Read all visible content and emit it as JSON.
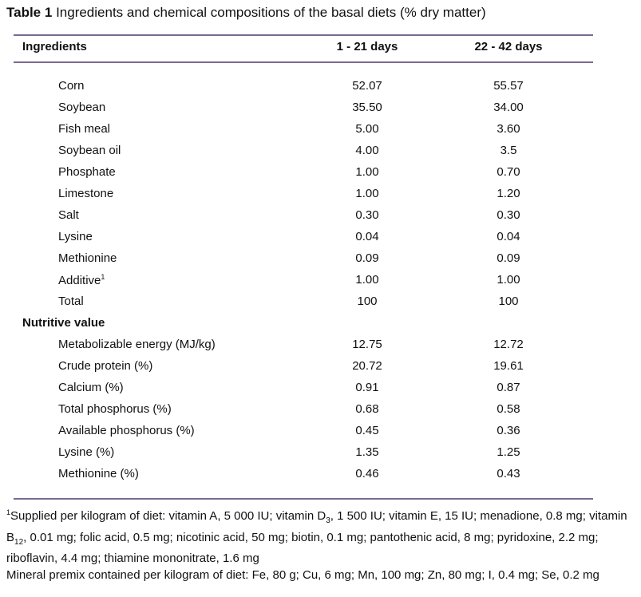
{
  "title": {
    "label": "Table 1",
    "text": "Ingredients and chemical compositions of the basal diets (% dry matter)"
  },
  "header": {
    "col0": "Ingredients",
    "col1": "1 - 21 days",
    "col2": "22 - 42 days"
  },
  "rows": [
    {
      "label": "Corn",
      "v1": "52.07",
      "v2": "55.57"
    },
    {
      "label": "Soybean",
      "v1": "35.50",
      "v2": "34.00"
    },
    {
      "label": "Fish meal",
      "v1": "5.00",
      "v2": "3.60"
    },
    {
      "label": "Soybean oil",
      "v1": "4.00",
      "v2": "3.5"
    },
    {
      "label": "Phosphate",
      "v1": "1.00",
      "v2": "0.70"
    },
    {
      "label": "Limestone",
      "v1": "1.00",
      "v2": "1.20"
    },
    {
      "label": "Salt",
      "v1": "0.30",
      "v2": "0.30"
    },
    {
      "label": "Lysine",
      "v1": "0.04",
      "v2": "0.04"
    },
    {
      "label": "Methionine",
      "v1": "0.09",
      "v2": "0.09"
    },
    {
      "label": "Additive",
      "sup": "1",
      "v1": "1.00",
      "v2": "1.00"
    },
    {
      "label": "Total",
      "v1": "100",
      "v2": "100"
    },
    {
      "label": "Nutritive value",
      "section": true
    },
    {
      "label": "Metabolizable energy (MJ/kg)",
      "v1": "12.75",
      "v2": "12.72"
    },
    {
      "label": "Crude protein (%)",
      "v1": "20.72",
      "v2": "19.61"
    },
    {
      "label": "Calcium (%)",
      "v1": "0.91",
      "v2": "0.87"
    },
    {
      "label": "Total phosphorus (%)",
      "v1": "0.68",
      "v2": "0.58"
    },
    {
      "label": "Available phosphorus (%)",
      "v1": "0.45",
      "v2": "0.36"
    },
    {
      "label": "Lysine (%)",
      "v1": "1.35",
      "v2": "1.25"
    },
    {
      "label": "Methionine (%)",
      "v1": "0.46",
      "v2": "0.43"
    }
  ],
  "footnote": {
    "mark": "1",
    "p1a": "Supplied per kilogram of diet: vitamin A, 5 000 IU; vitamin D",
    "p1sub1": "3",
    "p1b": ", 1 500 IU; vitamin E, 15 IU; menadione, 0.8 mg; vitamin B",
    "p1sub2": "12",
    "p1c": ", 0.01 mg; folic acid, 0.5 mg; nicotinic acid, 50 mg; biotin, 0.1 mg; pantothenic acid, 8 mg; pyridoxine, 2.2 mg; riboflavin, 4.4 mg; thiamine mononitrate, 1.6 mg",
    "p2": "Mineral premix contained per kilogram of diet: Fe, 80 g; Cu, 6 mg; Mn, 100 mg; Zn, 80 mg; I, 0.4 mg; Se, 0.2 mg"
  },
  "colors": {
    "rule": "#7a6b8e"
  }
}
